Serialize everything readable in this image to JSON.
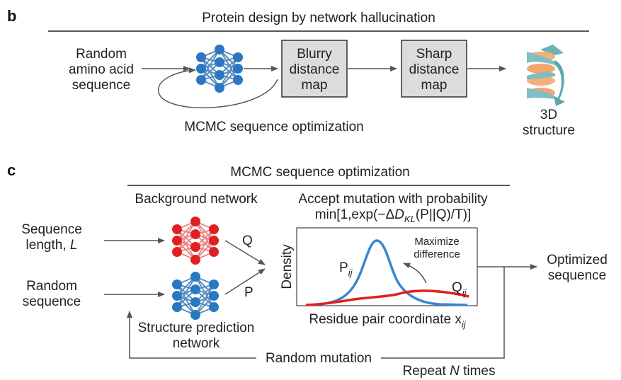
{
  "panel_b": {
    "label": "b",
    "title": "Protein design by network hallucination",
    "input": [
      "Random",
      "amino acid",
      "sequence"
    ],
    "box_blurry": [
      "Blurry",
      "distance",
      "map"
    ],
    "box_sharp": [
      "Sharp",
      "distance",
      "map"
    ],
    "loop_label": "MCMC sequence optimization",
    "output": [
      "3D",
      "structure"
    ]
  },
  "panel_c": {
    "label": "c",
    "title": "MCMC sequence optimization",
    "background_network": "Background network",
    "accept_line1": "Accept mutation with probability",
    "accept_line2_prefix": "min[1,exp(−Δ",
    "accept_D": "D",
    "accept_KL": "KL",
    "accept_args": "(P||Q)/T)]",
    "input1": [
      "Sequence",
      "length, "
    ],
    "input1_var": "L",
    "input2": [
      "Random",
      "sequence"
    ],
    "arrow_q": "Q",
    "arrow_p": "P",
    "structure_network": [
      "Structure prediction",
      "network"
    ],
    "plot": {
      "ylabel": "Density",
      "xlabel": "Residue pair coordinate x",
      "xlabel_sub": "ij",
      "p_label": "P",
      "p_sub": "ij",
      "q_label": "Q",
      "q_sub": "ij",
      "annotation": [
        "Maximize",
        "difference"
      ]
    },
    "output": [
      "Optimized",
      "sequence"
    ],
    "random_mutation": "Random mutation",
    "repeat_prefix": "Repeat ",
    "repeat_var": "N",
    "repeat_suffix": " times"
  },
  "colors": {
    "background_network": "#e02020",
    "structure_network": "#2a78c2",
    "p_curve": "#3a86cc",
    "q_curve": "#dd2222",
    "box_fill": "#dcdcdc",
    "arrow": "#555555"
  }
}
